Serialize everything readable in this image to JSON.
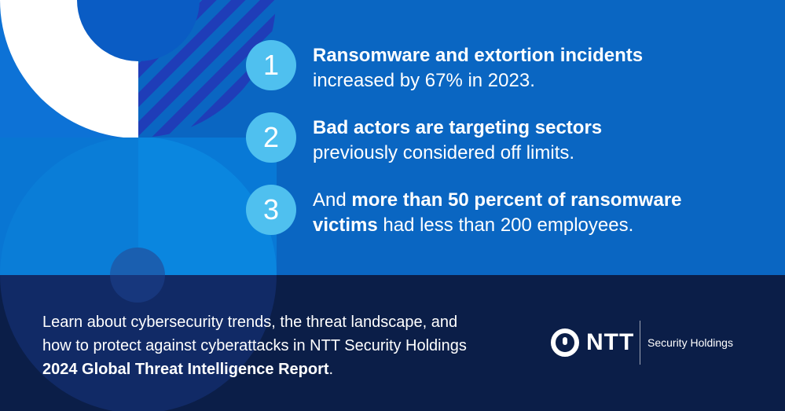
{
  "colors": {
    "background": "#0a66c2",
    "accent_circle": "#4fc0ef",
    "footer": "#0b1e48",
    "text": "#ffffff"
  },
  "points": [
    {
      "number": "1",
      "bold_lead": "Ransomware and extortion incidents",
      "rest": "increased by 67% in 2023."
    },
    {
      "number": "2",
      "bold_lead": "Bad actors are targeting sectors",
      "rest": "previously considered off limits."
    },
    {
      "number": "3",
      "prefix": "And ",
      "bold_lead": "more than 50 percent of ransomware",
      "bold_tail": "victims",
      "rest": " had less than 200 employees."
    }
  ],
  "footer": {
    "text_line1": "Learn about cybersecurity trends, the threat landscape, and",
    "text_line2": "how to protect against cyberattacks in NTT Security Holdings",
    "report_title": "2024 Global Threat Intelligence Report",
    "report_suffix": "."
  },
  "logo": {
    "wordmark": "NTT",
    "subtitle": "Security Holdings",
    "icon": "ntt-logo-icon"
  }
}
